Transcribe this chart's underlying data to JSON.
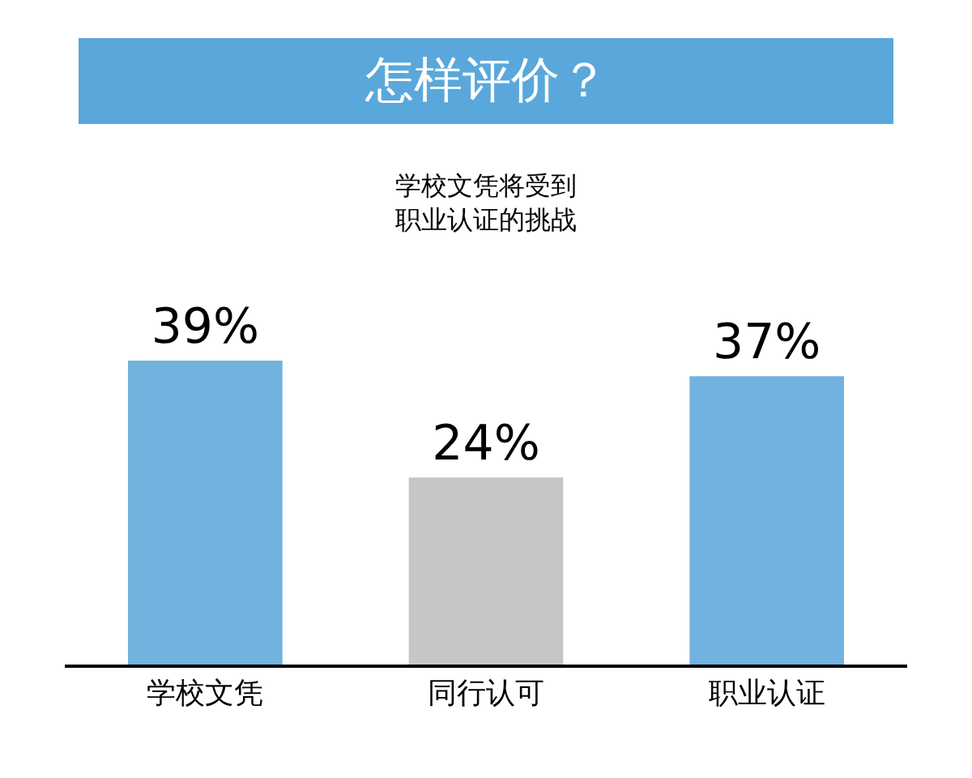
{
  "chart_data": {
    "type": "bar",
    "title": "怎样评价？",
    "subtitle": "学校文凭将受到职业认证的挑战",
    "categories": [
      "学校文凭",
      "同行认可",
      "职业认证"
    ],
    "values": [
      39,
      24,
      37
    ],
    "colors": [
      "#72b2de",
      "#c6c6c4",
      "#72b2de"
    ],
    "value_labels": [
      "39%",
      "24%",
      "37%"
    ]
  }
}
